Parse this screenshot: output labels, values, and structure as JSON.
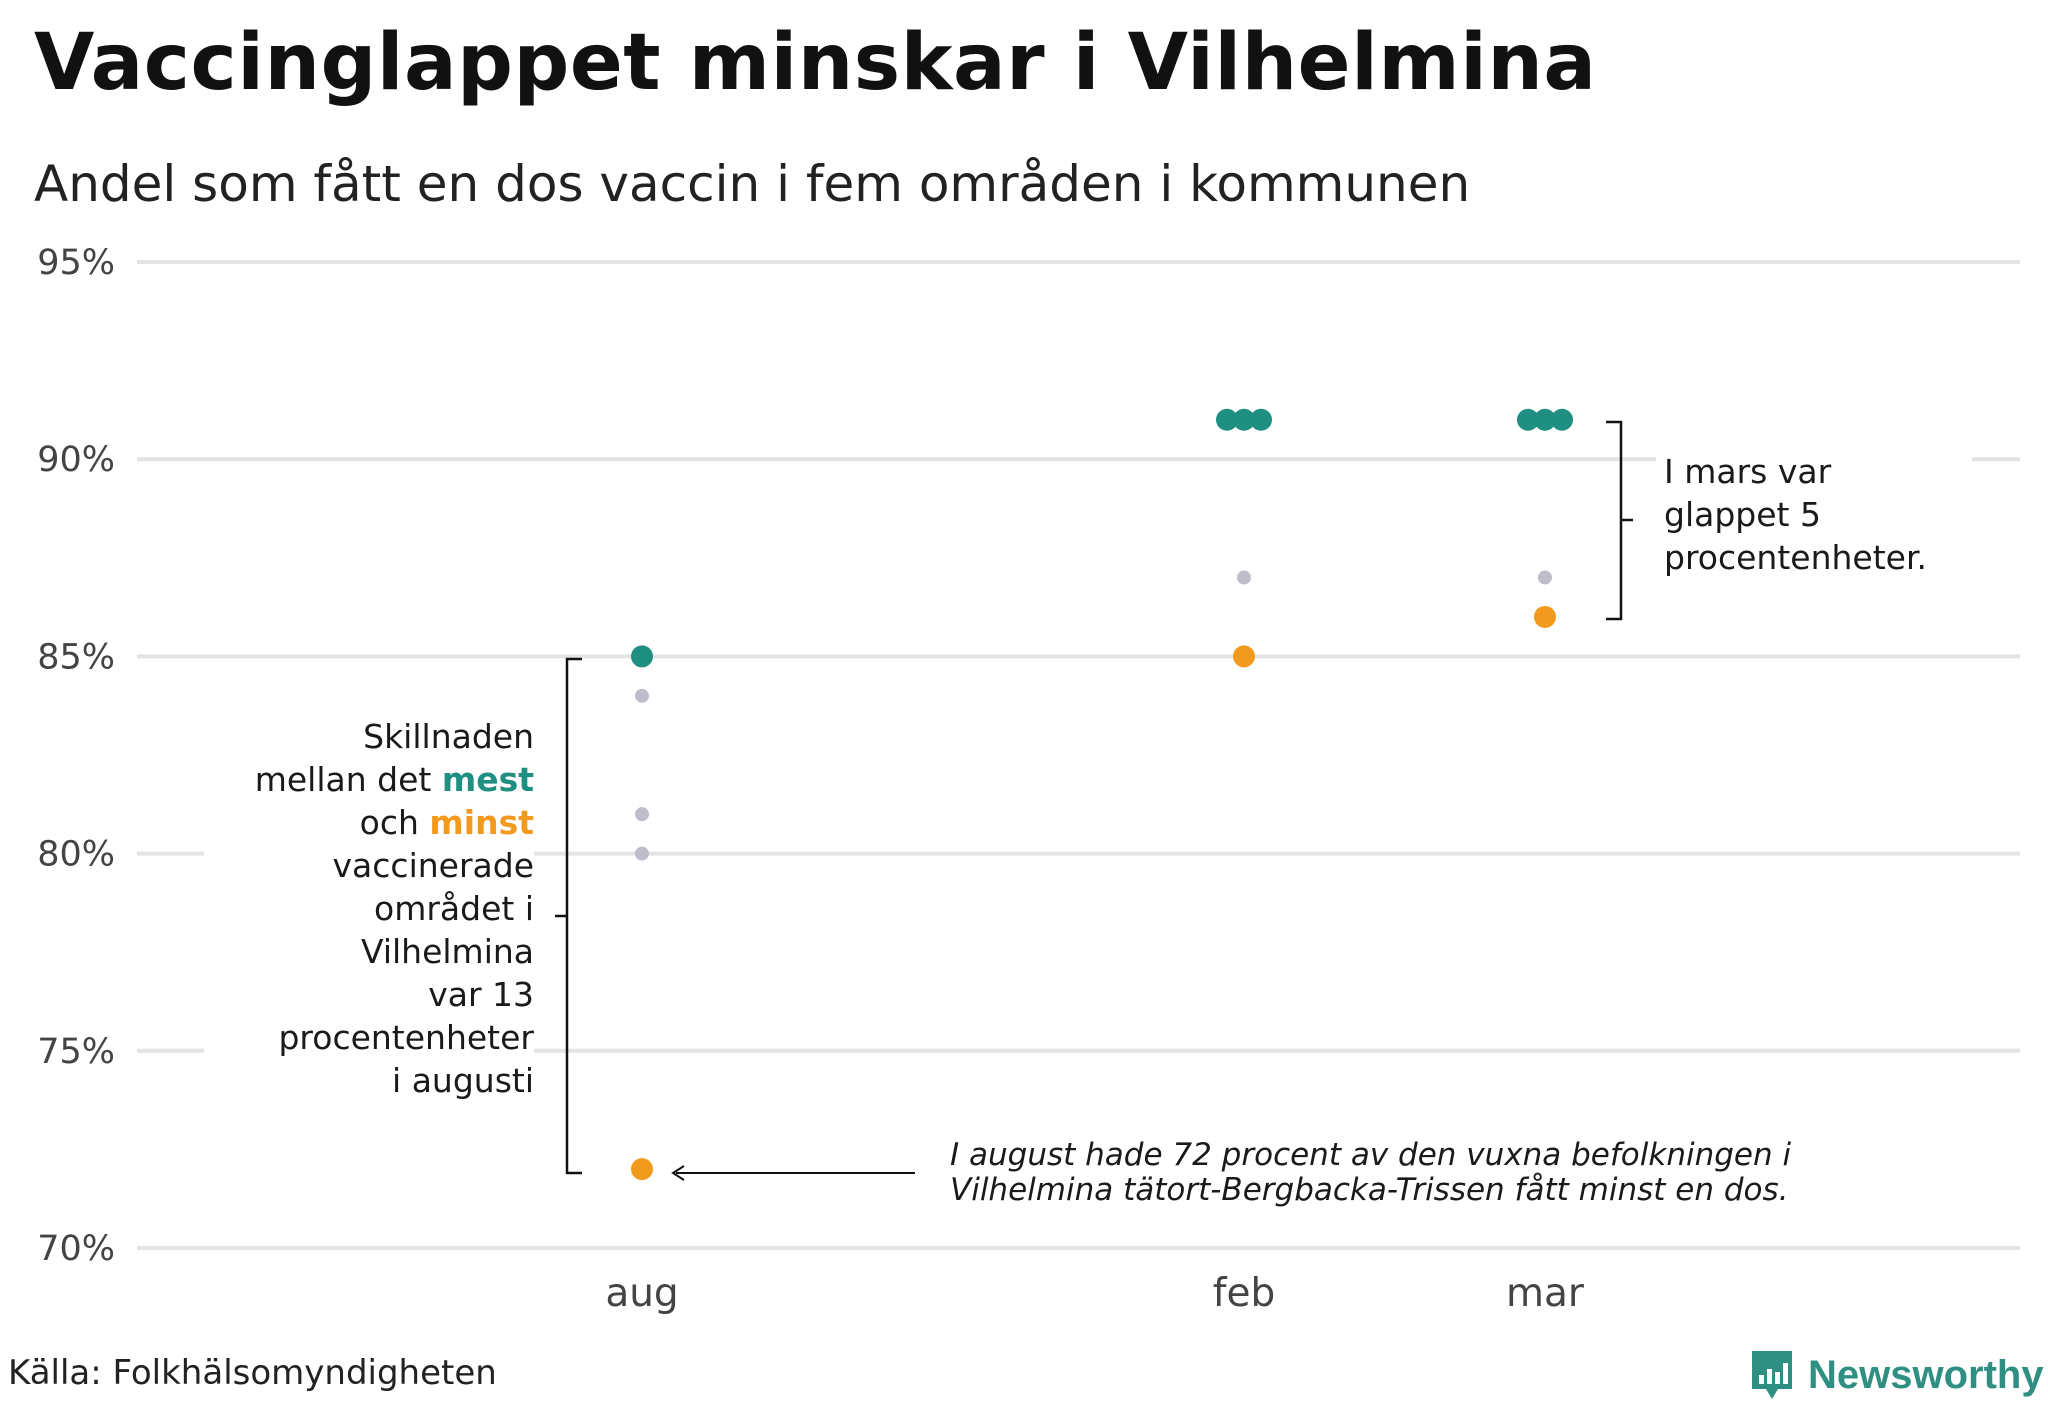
{
  "title": "Vaccinglappet minskar i Vilhelmina",
  "subtitle": "Andel som fått en dos vaccin i fem områden i kommunen",
  "source": "Källa: Folkhälsomyndigheten",
  "logo": {
    "text": "Newsworthy",
    "icon": "newsworthy-bar-chart-icon",
    "color": "#2f8f82"
  },
  "colors": {
    "most": "#1f8f81",
    "least": "#f29a1e",
    "other": "#bfbdcc",
    "grid": "#e4e4e4"
  },
  "annotations": {
    "left": {
      "line1": "Skillnaden",
      "line2_pre": "mellan det ",
      "line2_em": "mest",
      "line3_pre": "och ",
      "line3_em": "minst",
      "line4": "vaccinerade",
      "line5": "området i",
      "line6": "Vilhelmina",
      "line7": "var 13",
      "line8": "procentenheter",
      "line9": "i augusti"
    },
    "right": {
      "line1": "I mars var",
      "line2": "glappet 5",
      "line3": "procentenheter."
    },
    "bottom": {
      "line1": "I august hade 72 procent av den vuxna befolkningen i",
      "line2": "Vilhelmina tätort-Bergbacka-Trissen fått minst en dos."
    }
  },
  "chart_data": {
    "type": "scatter",
    "title": "Vaccinglappet minskar i Vilhelmina",
    "subtitle": "Andel som fått en dos vaccin i fem områden i kommunen",
    "categories": [
      "aug",
      "feb",
      "mar"
    ],
    "y_ticks": [
      "70%",
      "75%",
      "80%",
      "85%",
      "90%",
      "95%"
    ],
    "ylim": [
      70,
      95
    ],
    "grid": "horizontal",
    "points": [
      {
        "x": "aug",
        "y": 85,
        "group": "most"
      },
      {
        "x": "aug",
        "y": 84,
        "group": "other"
      },
      {
        "x": "aug",
        "y": 81,
        "group": "other"
      },
      {
        "x": "aug",
        "y": 80,
        "group": "other"
      },
      {
        "x": "aug",
        "y": 72,
        "group": "least"
      },
      {
        "x": "feb",
        "y": 91,
        "group": "most"
      },
      {
        "x": "feb",
        "y": 91,
        "group": "most"
      },
      {
        "x": "feb",
        "y": 91,
        "group": "most"
      },
      {
        "x": "feb",
        "y": 87,
        "group": "other"
      },
      {
        "x": "feb",
        "y": 85,
        "group": "least"
      },
      {
        "x": "mar",
        "y": 91,
        "group": "most"
      },
      {
        "x": "mar",
        "y": 91,
        "group": "most"
      },
      {
        "x": "mar",
        "y": 91,
        "group": "most"
      },
      {
        "x": "mar",
        "y": 87,
        "group": "other"
      },
      {
        "x": "mar",
        "y": 86,
        "group": "least"
      }
    ]
  }
}
